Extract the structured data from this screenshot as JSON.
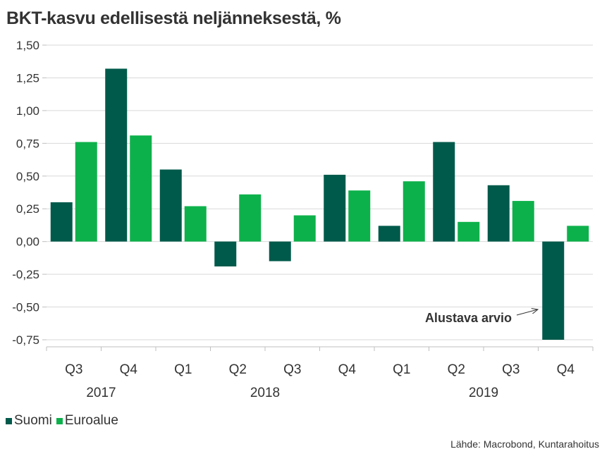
{
  "title": "BKT-kasvu edellisestä neljänneksestä, %",
  "source": "Lähde: Macrobond, Kuntarahoitus",
  "colors": {
    "suomi": "#005a4b",
    "euroalue": "#0db14b",
    "grid": "#d9d9d9",
    "axis": "#bfbfbf",
    "text": "#333333"
  },
  "chart_data": {
    "type": "bar",
    "categories": [
      "Q3 2017",
      "Q4 2017",
      "Q1 2018",
      "Q2 2018",
      "Q3 2018",
      "Q4 2018",
      "Q1 2019",
      "Q2 2019",
      "Q3 2019",
      "Q4 2019"
    ],
    "quarter_labels": [
      "Q3",
      "Q4",
      "Q1",
      "Q2",
      "Q3",
      "Q4",
      "Q1",
      "Q2",
      "Q3",
      "Q4"
    ],
    "year_labels": [
      "2017",
      "2018",
      "2019"
    ],
    "series": [
      {
        "name": "Suomi",
        "color": "#005a4b",
        "values": [
          0.3,
          1.32,
          0.55,
          -0.19,
          -0.15,
          0.51,
          0.12,
          0.76,
          0.43,
          -0.75
        ]
      },
      {
        "name": "Euroalue",
        "color": "#0db14b",
        "values": [
          0.76,
          0.81,
          0.27,
          0.36,
          0.2,
          0.39,
          0.46,
          0.15,
          0.31,
          0.12
        ]
      }
    ],
    "ylim": [
      -0.75,
      1.5
    ],
    "yticks": [
      1.5,
      1.25,
      1.0,
      0.75,
      0.5,
      0.25,
      0.0,
      -0.25,
      -0.5,
      -0.75
    ],
    "ytick_labels": [
      "1,50",
      "1,25",
      "1,00",
      "0,75",
      "0,50",
      "0,25",
      "0,00",
      "-0,25",
      "-0,50",
      "-0,75"
    ],
    "grid": true,
    "legend_position": "bottom-left",
    "annotation": {
      "text": "Alustava arvio",
      "category": "Q4 2019",
      "series": "Suomi"
    }
  }
}
